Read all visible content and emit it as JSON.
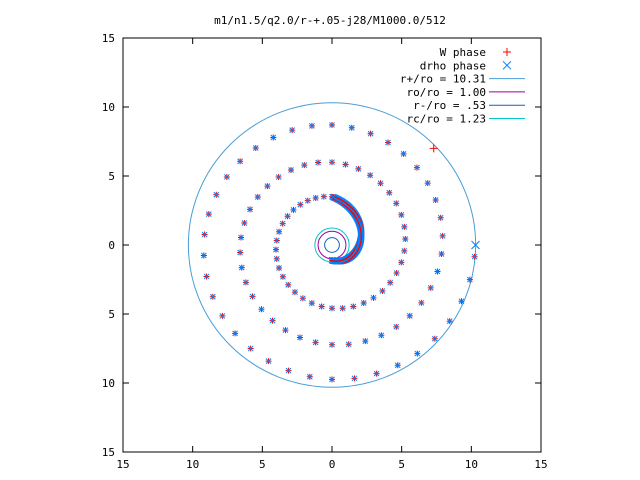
{
  "chart_data": {
    "type": "scatter",
    "title": "m1/n1.5/q2.0/r-+.05-j28/M1000.0/512",
    "xlabel": "",
    "ylabel": "",
    "xlim": [
      -15,
      15
    ],
    "ylim": [
      -15,
      15
    ],
    "x_ticks": [
      -15,
      -10,
      -5,
      0,
      5,
      10,
      15
    ],
    "y_ticks": [
      -15,
      -10,
      -5,
      0,
      5,
      10,
      15
    ],
    "x_tick_labels": [
      "15",
      "10",
      "5",
      "0",
      "5",
      "10",
      "15"
    ],
    "y_tick_labels": [
      "15",
      "10",
      "5",
      "0",
      "5",
      "10",
      "15"
    ],
    "grid": false,
    "legend_position": "top-right",
    "series": [
      {
        "name": "W phase",
        "kind": "points",
        "marker": "plus",
        "color": "#ff0000"
      },
      {
        "name": "drho phase",
        "kind": "points",
        "marker": "cross",
        "color": "#0080ff"
      },
      {
        "name": "r+/ro = 10.31",
        "kind": "circle",
        "radius": 10.31,
        "color": "#4a9ed6"
      },
      {
        "name": "ro/ro = 1.00",
        "kind": "circle",
        "radius": 1.0,
        "color": "#a000a0"
      },
      {
        "name": "r-/ro = .53",
        "kind": "circle",
        "radius": 0.53,
        "color": "#1060c0"
      },
      {
        "name": "rc/ro = 1.23",
        "kind": "circle",
        "radius": 1.23,
        "color": "#00c8c8"
      }
    ],
    "spiral": {
      "description": "trailing one-armed logarithmic spiral traced from r-/ro to r+/ro",
      "points_per_turn": 38,
      "samples": [
        {
          "angle_deg": -90,
          "r": 1.1
        },
        {
          "angle_deg": 90,
          "r": 3.5
        },
        {
          "angle_deg": 450,
          "r": 6.0
        },
        {
          "angle_deg": 810,
          "r": 8.7
        },
        {
          "angle_deg": 1080,
          "r": 10.3
        }
      ],
      "special_points": [
        {
          "series": "W phase",
          "x": 7.3,
          "y": 7.0
        },
        {
          "series": "drho phase",
          "x": 10.3,
          "y": 0.0
        }
      ]
    }
  }
}
